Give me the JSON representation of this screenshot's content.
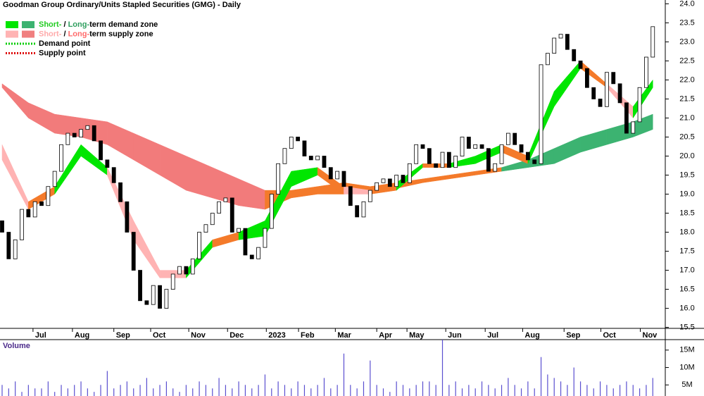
{
  "chart_data": {
    "type": "candlestick",
    "title": "Goodman Group Ordinary/Units Stapled Securities (GMG) - Daily",
    "legend": [
      {
        "parts": [
          "Short-",
          " / ",
          "Long-",
          "term demand zone"
        ],
        "part_colors": [
          "#22cc22",
          "#000000",
          "#2e9e5e",
          "#000000"
        ],
        "colors": [
          "#00e600",
          "#3cb371"
        ]
      },
      {
        "parts": [
          "Short-",
          " / ",
          "Long-",
          "term supply zone"
        ],
        "part_colors": [
          "#ffaaaa",
          "#000000",
          "#ff6a6a",
          "#000000"
        ],
        "colors": [
          "#ffb3b3",
          "#f07f7f"
        ]
      },
      {
        "parts": [
          "Demand point"
        ],
        "part_colors": [
          "#000000"
        ],
        "colors": [
          "#00cc00"
        ],
        "dotted": true
      },
      {
        "parts": [
          "Supply point"
        ],
        "part_colors": [
          "#000000"
        ],
        "colors": [
          "#dd0000"
        ],
        "dotted": true
      }
    ],
    "xlim": [
      0,
      100.9
    ],
    "xticks": [
      {
        "value": 4.7,
        "label": "Jul"
      },
      {
        "value": 10.7,
        "label": "Aug"
      },
      {
        "value": 17.0,
        "label": "Sep"
      },
      {
        "value": 22.6,
        "label": "Oct"
      },
      {
        "value": 28.4,
        "label": "Nov"
      },
      {
        "value": 34.3,
        "label": "Dec"
      },
      {
        "value": 40.2,
        "label": "2023"
      },
      {
        "value": 45.1,
        "label": "Feb"
      },
      {
        "value": 50.7,
        "label": "Mar"
      },
      {
        "value": 57.0,
        "label": "Apr"
      },
      {
        "value": 61.6,
        "label": "May"
      },
      {
        "value": 67.5,
        "label": "Jun"
      },
      {
        "value": 73.5,
        "label": "Jul"
      },
      {
        "value": 79.2,
        "label": "Aug"
      },
      {
        "value": 85.5,
        "label": "Sep"
      },
      {
        "value": 91.1,
        "label": "Oct"
      },
      {
        "value": 97.1,
        "label": "Nov"
      }
    ],
    "ylim": [
      15.4,
      24.1
    ],
    "yticks": [
      15.5,
      {
        "value": 16,
        "label": "16.0"
      },
      16.5,
      {
        "value": 17,
        "label": "17.0"
      },
      17.5,
      {
        "value": 18,
        "label": "18.0"
      },
      18.5,
      {
        "value": 19,
        "label": "19.0"
      },
      19.5,
      {
        "value": 20,
        "label": "20.0"
      },
      20.5,
      {
        "value": 21,
        "label": "21.0"
      },
      21.5,
      {
        "value": 22,
        "label": "22.0"
      },
      22.5,
      {
        "value": 23,
        "label": "23.0"
      },
      23.5,
      {
        "value": 24,
        "label": "24.0"
      }
    ],
    "open": [
      18.3,
      18.0,
      17.3,
      17.8,
      18.6,
      18.4,
      18.8,
      18.7,
      19.2,
      19.6,
      20.3,
      20.6,
      20.5,
      20.7,
      20.8,
      20.4,
      19.9,
      19.7,
      19.3,
      18.8,
      18.0,
      17.0,
      16.2,
      16.1,
      16.6,
      16.0,
      16.5,
      16.9,
      17.1,
      16.9,
      17.3,
      18.0,
      18.2,
      18.5,
      18.8,
      18.9,
      18.0,
      18.1,
      17.4,
      17.3,
      17.6,
      18.1,
      19.0,
      19.8,
      20.2,
      20.5,
      20.4,
      20.0,
      19.9,
      20.0,
      19.7,
      19.4,
      19.6,
      19.2,
      18.7,
      18.4,
      18.8,
      19.1,
      19.3,
      19.4,
      19.2,
      19.5,
      19.3,
      19.8,
      20.3,
      20.2,
      19.8,
      19.7,
      20.1,
      19.7,
      20.0,
      20.5,
      20.2,
      20.3,
      20.2,
      19.6,
      19.8,
      20.3,
      20.6,
      20.3,
      20.1,
      19.9,
      19.8,
      22.4,
      22.7,
      23.1,
      23.2,
      22.8,
      22.5,
      22.3,
      21.8,
      21.5,
      21.3,
      22.2,
      21.9,
      21.4,
      20.6,
      20.9,
      21.8,
      22.6
    ],
    "close": [
      18.0,
      17.3,
      17.8,
      18.6,
      18.4,
      18.8,
      18.7,
      19.2,
      19.6,
      20.3,
      20.6,
      20.5,
      20.7,
      20.8,
      20.4,
      19.9,
      19.7,
      19.3,
      18.8,
      18.0,
      17.0,
      16.2,
      16.1,
      16.6,
      16.0,
      16.5,
      16.9,
      17.1,
      16.9,
      17.3,
      18.0,
      18.2,
      18.5,
      18.8,
      18.9,
      18.0,
      18.1,
      17.4,
      17.3,
      17.6,
      18.1,
      19.0,
      19.8,
      20.2,
      20.5,
      20.4,
      20.0,
      19.9,
      20.0,
      19.7,
      19.4,
      19.6,
      19.2,
      18.7,
      18.4,
      18.8,
      19.1,
      19.3,
      19.4,
      19.2,
      19.5,
      19.3,
      19.8,
      20.3,
      20.2,
      19.8,
      19.7,
      20.1,
      19.7,
      20.0,
      20.5,
      20.2,
      20.3,
      20.2,
      19.6,
      19.8,
      20.3,
      20.6,
      20.3,
      20.1,
      19.9,
      19.8,
      22.4,
      22.7,
      23.1,
      23.2,
      22.8,
      22.5,
      22.3,
      21.8,
      21.5,
      21.3,
      22.2,
      21.9,
      21.4,
      20.6,
      20.9,
      21.8,
      22.6,
      23.4
    ],
    "zones": [
      {
        "x": [
          0,
          4,
          8,
          12,
          16,
          20,
          24,
          28,
          32,
          36,
          40,
          44,
          48,
          52,
          56,
          60,
          64,
          68,
          72,
          76,
          80,
          84,
          88,
          92,
          96,
          99
        ],
        "upper": [
          21.9,
          21.4,
          21.1,
          21.0,
          20.9,
          20.6,
          20.3,
          20.0,
          19.7,
          19.4,
          19.1,
          19.1,
          19.2,
          19.3,
          19.2,
          19.3,
          19.4,
          19.5,
          19.6,
          19.7,
          19.9,
          20.2,
          20.5,
          20.7,
          20.9,
          21.1
        ],
        "lower": [
          21.8,
          21.0,
          20.6,
          20.5,
          20.3,
          19.9,
          19.5,
          19.1,
          18.9,
          18.7,
          18.6,
          18.9,
          19.0,
          19.0,
          19.1,
          19.15,
          19.3,
          19.4,
          19.5,
          19.6,
          19.7,
          19.8,
          20.1,
          20.3,
          20.5,
          20.7
        ],
        "colors": [
          "#f27b7b",
          "#f27b7b",
          "#f27b7b",
          "#f27b7b",
          "#f27b7b",
          "#f27b7b",
          "#f27b7b",
          "#f27b7b",
          "#f27b7b",
          "#f27b7b",
          "#f47a2a",
          "#f47a2a",
          "#f47a2a",
          "#f47a2a",
          "#f47a2a",
          "#f47a2a",
          "#f47a2a",
          "#f47a2a",
          "#f47a2a",
          "#3cb371",
          "#3cb371",
          "#3cb371",
          "#3cb371",
          "#3cb371",
          "#3cb371"
        ]
      },
      {
        "x": [
          0,
          4,
          8,
          12,
          16,
          20,
          24,
          28,
          32,
          36,
          40,
          44,
          48,
          52,
          56,
          60,
          64,
          68,
          72,
          76,
          80,
          84,
          88,
          92,
          96,
          99
        ],
        "upper": [
          20.3,
          18.8,
          19.2,
          20.3,
          19.7,
          18.3,
          17.0,
          17.0,
          17.8,
          18.0,
          18.3,
          19.6,
          19.7,
          19.2,
          19.1,
          19.3,
          19.8,
          19.8,
          20.0,
          20.3,
          20.0,
          21.7,
          22.5,
          21.9,
          21.3,
          22.0
        ],
        "lower": [
          19.9,
          18.6,
          19.0,
          20.0,
          19.5,
          17.8,
          16.8,
          16.8,
          17.6,
          17.8,
          17.9,
          19.2,
          19.5,
          19.0,
          19.0,
          19.1,
          19.7,
          19.7,
          19.8,
          20.1,
          19.8,
          21.3,
          22.3,
          21.8,
          21.0,
          21.8
        ],
        "colors": [
          "#ffb3b3",
          "#f47a2a",
          "#00e600",
          "#00e600",
          "#ffb3b3",
          "#ffb3b3",
          "#ffb3b3",
          "#00e600",
          "#f47a2a",
          "#00e600",
          "#00e600",
          "#00e600",
          "#f47a2a",
          "#ffb3b3",
          "#f47a2a",
          "#00e600",
          "#f47a2a",
          "#00e600",
          "#00e600",
          "#f47a2a",
          "#00e600",
          "#00e600",
          "#f47a2a",
          "#ffb3b3",
          "#00e600"
        ]
      }
    ],
    "volume": {
      "label": "Volume",
      "color": "#5a4fd0",
      "ylim": [
        0,
        18
      ],
      "yticks": [
        {
          "value": 5,
          "label": "5M"
        },
        {
          "value": 10,
          "label": "10M"
        },
        {
          "value": 15,
          "label": "15M"
        }
      ],
      "values": [
        5,
        4,
        6,
        3,
        5,
        4,
        4,
        6,
        3,
        5,
        4,
        5,
        6,
        4,
        3,
        5,
        9,
        4,
        5,
        6,
        4,
        5,
        7,
        4,
        5,
        6,
        4,
        3,
        5,
        4,
        6,
        5,
        4,
        7,
        5,
        4,
        6,
        5,
        4,
        5,
        8,
        4,
        6,
        5,
        4,
        6,
        5,
        4,
        5,
        7,
        4,
        5,
        14,
        5,
        4,
        6,
        12,
        5,
        4,
        3,
        6,
        5,
        4,
        5,
        6,
        6,
        5,
        18,
        5,
        6,
        4,
        5,
        4,
        6,
        5,
        4,
        5,
        7,
        5,
        4,
        6,
        4,
        13,
        8,
        7,
        6,
        5,
        10,
        6,
        5,
        4,
        6,
        5,
        4,
        5,
        6,
        5,
        4,
        5,
        7
      ]
    }
  }
}
